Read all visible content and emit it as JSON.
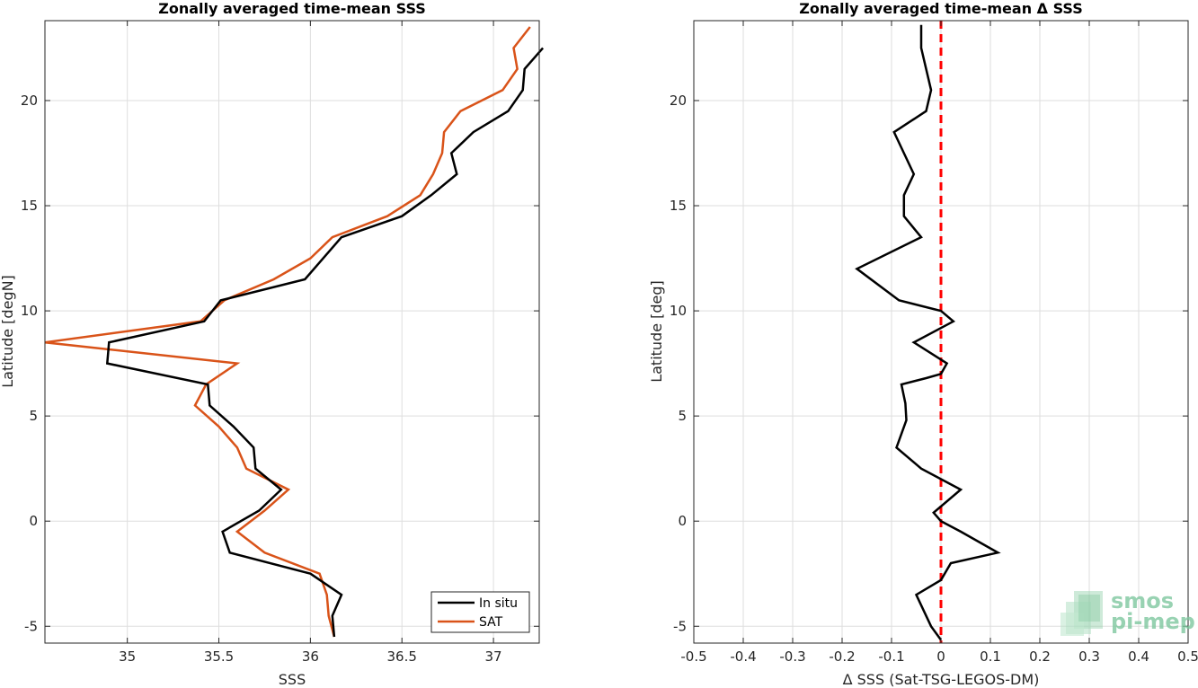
{
  "chart_data": [
    {
      "type": "line",
      "title": "Zonally averaged time-mean SSS",
      "xlabel": "SSS",
      "ylabel": "Latitude [degN]",
      "xlim": [
        34.55,
        37.25
      ],
      "ylim": [
        -5.8,
        23.8
      ],
      "xticks": [
        35,
        35.5,
        36,
        36.5,
        37
      ],
      "xtick_labels": [
        "35",
        "35.5",
        "36",
        "36.5",
        "37"
      ],
      "yticks": [
        -5,
        0,
        5,
        10,
        15,
        20
      ],
      "ytick_labels": [
        "-5",
        "0",
        "5",
        "10",
        "15",
        "20"
      ],
      "grid": true,
      "legend_position": "bottom-right",
      "series": [
        {
          "name": "In situ",
          "color": "#000000",
          "x": [
            36.13,
            36.12,
            36.17,
            36.0,
            35.56,
            35.52,
            35.72,
            35.84,
            35.7,
            35.69,
            35.58,
            35.45,
            35.44,
            34.89,
            34.9,
            35.42,
            35.51,
            35.97,
            36.07,
            36.17,
            36.5,
            36.66,
            36.8,
            36.77,
            36.89,
            37.08,
            37.16,
            37.17,
            37.27
          ],
          "y": [
            -5.5,
            -4.5,
            -3.5,
            -2.5,
            -1.5,
            -0.5,
            0.5,
            1.5,
            2.5,
            3.5,
            4.5,
            5.5,
            6.5,
            7.5,
            8.5,
            9.5,
            10.5,
            11.5,
            12.5,
            13.5,
            14.5,
            15.5,
            16.5,
            17.5,
            18.5,
            19.5,
            20.5,
            21.5,
            22.5
          ]
        },
        {
          "name": "SAT",
          "color": "#d95319",
          "x": [
            36.13,
            36.1,
            36.09,
            36.05,
            35.75,
            35.6,
            35.75,
            35.88,
            35.65,
            35.6,
            35.5,
            35.37,
            35.43,
            35.6,
            34.55,
            35.4,
            35.53,
            35.8,
            36.0,
            36.12,
            36.42,
            36.6,
            36.67,
            36.72,
            36.73,
            36.82,
            37.05,
            37.13,
            37.11,
            37.2
          ],
          "y": [
            -5.5,
            -4.5,
            -3.5,
            -2.5,
            -1.5,
            -0.5,
            0.5,
            1.5,
            2.5,
            3.5,
            4.5,
            5.5,
            6.5,
            7.5,
            8.5,
            9.5,
            10.5,
            11.5,
            12.5,
            13.5,
            14.5,
            15.5,
            16.5,
            17.5,
            18.5,
            19.5,
            20.5,
            21.5,
            22.5,
            23.5
          ]
        }
      ]
    },
    {
      "type": "line",
      "title": "Zonally averaged time-mean Δ SSS",
      "xlabel": "Δ SSS (Sat-TSG-LEGOS-DM)",
      "ylabel": "Latitude [deg]",
      "xlim": [
        -0.5,
        0.5
      ],
      "ylim": [
        -5.8,
        23.8
      ],
      "xticks": [
        -0.5,
        -0.4,
        -0.3,
        -0.2,
        -0.1,
        0,
        0.1,
        0.2,
        0.3,
        0.4,
        0.5
      ],
      "xtick_labels": [
        "-0.5",
        "-0.4",
        "-0.3",
        "-0.2",
        "-0.1",
        "0",
        "0.1",
        "0.2",
        "0.3",
        "0.4",
        "0.5"
      ],
      "yticks": [
        -5,
        0,
        5,
        10,
        15,
        20
      ],
      "ytick_labels": [
        "-5",
        "0",
        "5",
        "10",
        "15",
        "20"
      ],
      "grid": true,
      "reference_line": {
        "x": 0,
        "color": "#ff0000",
        "style": "dashed"
      },
      "series": [
        {
          "color": "#000000",
          "x": [
            0.0,
            -0.02,
            -0.05,
            0.0,
            0.02,
            0.115,
            0.04,
            0.0,
            -0.015,
            0.04,
            -0.04,
            -0.09,
            -0.07,
            -0.072,
            -0.08,
            -0.03,
            0.0,
            0.012,
            -0.055,
            0.025,
            0.0,
            -0.085,
            -0.17,
            -0.04,
            -0.075,
            -0.075,
            -0.055,
            -0.075,
            -0.095,
            -0.03,
            -0.02,
            -0.03,
            -0.04,
            -0.04
          ],
          "y": [
            -5.65,
            -5.0,
            -3.5,
            -2.8,
            -2.0,
            -1.5,
            -0.5,
            0.0,
            0.4,
            1.5,
            2.5,
            3.5,
            4.8,
            5.6,
            6.5,
            6.8,
            7.0,
            7.5,
            8.5,
            9.5,
            10.0,
            10.5,
            12.0,
            13.5,
            14.5,
            15.5,
            16.5,
            17.5,
            18.5,
            19.5,
            20.5,
            21.5,
            22.5,
            23.6
          ]
        }
      ]
    }
  ],
  "logo": {
    "line1": "smos",
    "line2": "pi-mep",
    "color": "#7fc89f"
  }
}
